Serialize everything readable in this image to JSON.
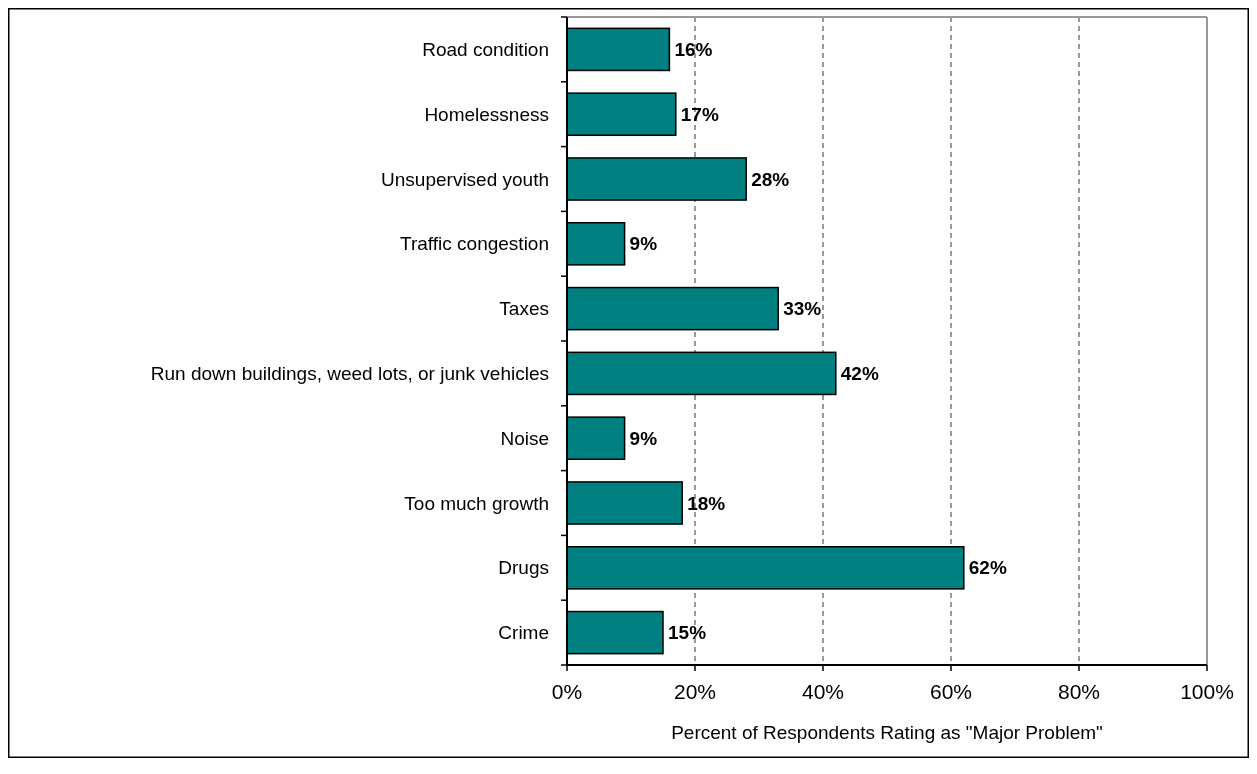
{
  "chart_data": {
    "type": "bar",
    "orientation": "horizontal",
    "xlabel": "Percent of Respondents Rating as \"Major Problem\"",
    "categories": [
      "Road condition",
      "Homelessness",
      "Unsupervised youth",
      "Traffic congestion",
      "Taxes",
      "Run down buildings, weed lots, or junk vehicles",
      "Noise",
      "Too much growth",
      "Drugs",
      "Crime"
    ],
    "values": [
      16,
      17,
      28,
      9,
      33,
      42,
      9,
      18,
      62,
      15
    ],
    "value_labels": [
      "16%",
      "17%",
      "28%",
      "9%",
      "33%",
      "42%",
      "9%",
      "18%",
      "62%",
      "15%"
    ],
    "color": "#008080",
    "xlim": [
      0,
      100
    ],
    "xticks": [
      {
        "value": 0,
        "label": "0%"
      },
      {
        "value": 20,
        "label": "20%"
      },
      {
        "value": 40,
        "label": "40%"
      },
      {
        "value": 60,
        "label": "60%"
      },
      {
        "value": 80,
        "label": "80%"
      },
      {
        "value": 100,
        "label": "100%"
      }
    ],
    "grid": "x"
  }
}
